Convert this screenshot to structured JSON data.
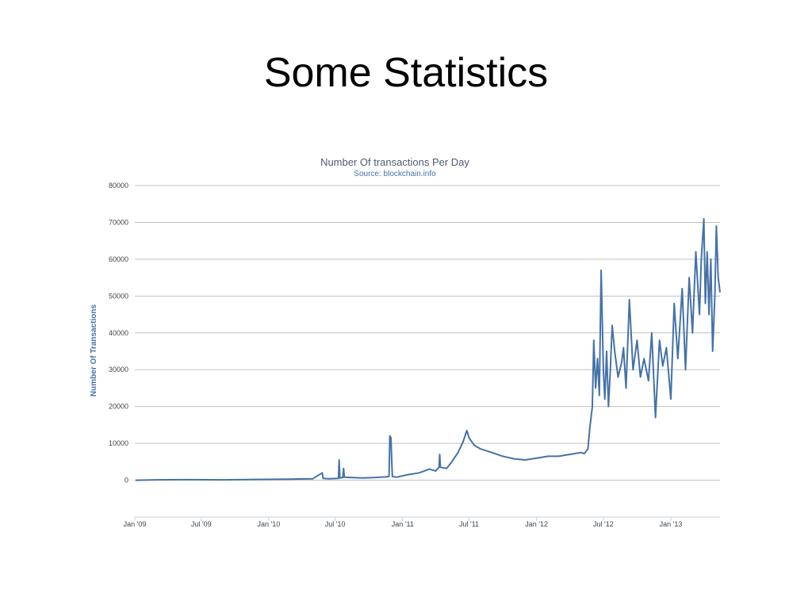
{
  "slide": {
    "title": "Some Statistics"
  },
  "chart_data": {
    "type": "line",
    "title": "Number Of transactions Per Day",
    "subtitle": "Source: blockchain.info",
    "ylabel": "Number Of Transactions",
    "xlabel": "",
    "ylim": [
      -10000,
      80000
    ],
    "yticks": [
      0,
      10000,
      20000,
      30000,
      40000,
      50000,
      60000,
      70000,
      80000
    ],
    "ytick_labels": [
      "0",
      "10000",
      "20000",
      "30000",
      "40000",
      "50000",
      "60000",
      "70000",
      "80000"
    ],
    "xlim": [
      "2009-01-01",
      "2013-05-15"
    ],
    "xticks": [
      "2009-01-01",
      "2009-07-01",
      "2010-01-01",
      "2010-07-01",
      "2011-01-01",
      "2011-07-01",
      "2012-01-01",
      "2012-07-01",
      "2013-01-01"
    ],
    "xtick_labels": [
      "Jan '09",
      "Jul '09",
      "Jan '10",
      "Jul '10",
      "Jan '11",
      "Jul '11",
      "Jan '12",
      "Jul '12",
      "Jan '13"
    ],
    "grid": true,
    "legend": "none",
    "line_color": "#4572a7",
    "series": [
      {
        "x": [
          "2009-01-03",
          "2009-03-01",
          "2009-06-01",
          "2009-09-01",
          "2009-12-01",
          "2010-03-01",
          "2010-05-01",
          "2010-05-27",
          "2010-05-29",
          "2010-06-15",
          "2010-07-10",
          "2010-07-12",
          "2010-07-14",
          "2010-07-22",
          "2010-07-24",
          "2010-07-26",
          "2010-08-15",
          "2010-09-15",
          "2010-10-15",
          "2010-11-15",
          "2010-11-25",
          "2010-11-27",
          "2010-11-30",
          "2010-12-02",
          "2010-12-04",
          "2010-12-15",
          "2011-01-15",
          "2011-02-15",
          "2011-03-15",
          "2011-04-01",
          "2011-04-10",
          "2011-04-12",
          "2011-04-14",
          "2011-05-01",
          "2011-05-15",
          "2011-06-01",
          "2011-06-15",
          "2011-06-25",
          "2011-07-01",
          "2011-07-15",
          "2011-08-01",
          "2011-09-01",
          "2011-10-01",
          "2011-11-01",
          "2011-12-01",
          "2012-01-01",
          "2012-02-01",
          "2012-03-01",
          "2012-04-01",
          "2012-05-01",
          "2012-05-10",
          "2012-05-20",
          "2012-05-25",
          "2012-06-01",
          "2012-06-05",
          "2012-06-10",
          "2012-06-15",
          "2012-06-20",
          "2012-06-25",
          "2012-07-01",
          "2012-07-05",
          "2012-07-10",
          "2012-07-15",
          "2012-07-20",
          "2012-07-25",
          "2012-08-01",
          "2012-08-10",
          "2012-08-20",
          "2012-08-25",
          "2012-09-01",
          "2012-09-10",
          "2012-09-20",
          "2012-10-01",
          "2012-10-10",
          "2012-10-20",
          "2012-11-01",
          "2012-11-10",
          "2012-11-20",
          "2012-12-01",
          "2012-12-10",
          "2012-12-20",
          "2013-01-01",
          "2013-01-10",
          "2013-01-20",
          "2013-02-01",
          "2013-02-10",
          "2013-02-20",
          "2013-03-01",
          "2013-03-10",
          "2013-03-20",
          "2013-03-25",
          "2013-04-01",
          "2013-04-05",
          "2013-04-10",
          "2013-04-15",
          "2013-04-20",
          "2013-04-25",
          "2013-05-01",
          "2013-05-05",
          "2013-05-10",
          "2013-05-15"
        ],
        "y": [
          0,
          100,
          150,
          100,
          200,
          300,
          400,
          2000,
          500,
          400,
          500,
          5500,
          600,
          700,
          3200,
          800,
          700,
          600,
          700,
          900,
          1000,
          12000,
          11500,
          6000,
          1000,
          800,
          1500,
          2000,
          3000,
          2500,
          3500,
          7000,
          3500,
          3200,
          5000,
          7500,
          10500,
          13500,
          11500,
          9500,
          8500,
          7500,
          6500,
          5800,
          5500,
          6000,
          6500,
          6500,
          7000,
          7500,
          7200,
          8500,
          14000,
          20000,
          38000,
          25000,
          33000,
          23000,
          57000,
          30000,
          22000,
          35000,
          20000,
          30000,
          42000,
          35000,
          28000,
          32000,
          36000,
          25000,
          49000,
          30000,
          38000,
          28000,
          33000,
          27000,
          40000,
          17000,
          38000,
          31000,
          36000,
          22000,
          48000,
          33000,
          52000,
          30000,
          55000,
          40000,
          62000,
          45000,
          60000,
          71000,
          48000,
          62000,
          45000,
          60000,
          35000,
          50000,
          69000,
          55000,
          51000
        ]
      }
    ]
  }
}
